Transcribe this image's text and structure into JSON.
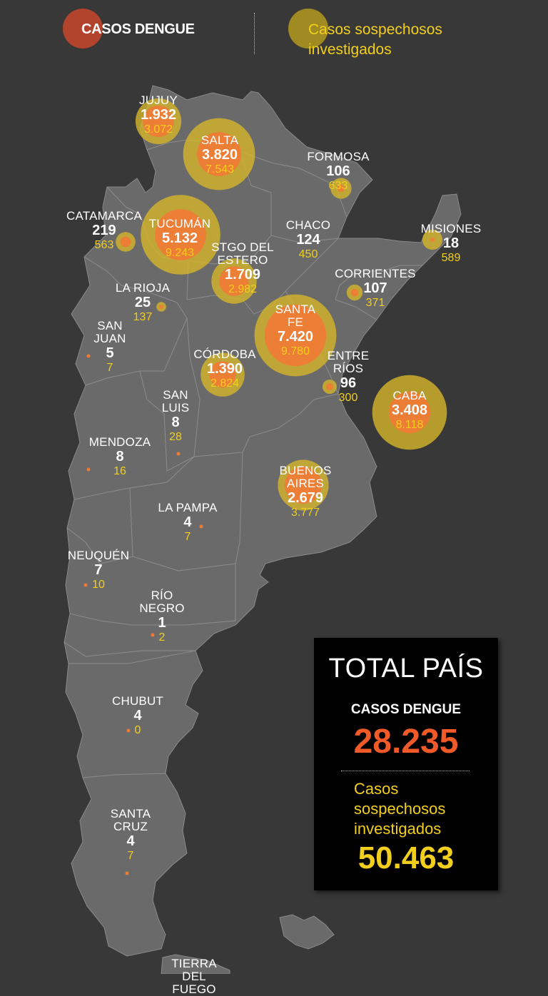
{
  "legend": {
    "dengue_label": "CASOS DENGUE",
    "suspect_label": "Casos sospechosos investigados"
  },
  "colors": {
    "background": "#383838",
    "land": "#6a6a6a",
    "border": "#888888",
    "dengue": "#f07b35",
    "suspect": "#d4b52b"
  },
  "provinces": [
    {
      "name": "JUJUY",
      "cases": "1.932",
      "suspect": "3.072"
    },
    {
      "name": "SALTA",
      "cases": "3.820",
      "suspect": "7.543"
    },
    {
      "name": "FORMOSA",
      "cases": "106",
      "suspect": "633"
    },
    {
      "name": "CATAMARCA",
      "cases": "219",
      "suspect": "563"
    },
    {
      "name": "TUCUMÁN",
      "cases": "5.132",
      "suspect": "9.243"
    },
    {
      "name": "CHACO",
      "cases": "124",
      "suspect": "450"
    },
    {
      "name": "MISIONES",
      "cases": "18",
      "suspect": "589"
    },
    {
      "name": "STGO DEL ESTERO",
      "cases": "1.709",
      "suspect": "2.982"
    },
    {
      "name": "CORRIENTES",
      "cases": "107",
      "suspect": "371"
    },
    {
      "name": "LA RIOJA",
      "cases": "25",
      "suspect": "137"
    },
    {
      "name": "SANTA FE",
      "cases": "7.420",
      "suspect": "9.780"
    },
    {
      "name": "SAN JUAN",
      "cases": "5",
      "suspect": "7"
    },
    {
      "name": "CÓRDOBA",
      "cases": "1.390",
      "suspect": "2.824"
    },
    {
      "name": "ENTRE RÍOS",
      "cases": "96",
      "suspect": "300"
    },
    {
      "name": "CABA",
      "cases": "3.408",
      "suspect": "8.118"
    },
    {
      "name": "SAN LUIS",
      "cases": "8",
      "suspect": "28"
    },
    {
      "name": "MENDOZA",
      "cases": "8",
      "suspect": "16"
    },
    {
      "name": "BUENOS AIRES",
      "cases": "2.679",
      "suspect": "3.777"
    },
    {
      "name": "LA PAMPA",
      "cases": "4",
      "suspect": "7"
    },
    {
      "name": "NEUQUÉN",
      "cases": "7",
      "suspect": "10"
    },
    {
      "name": "RÍO NEGRO",
      "cases": "1",
      "suspect": "2"
    },
    {
      "name": "CHUBUT",
      "cases": "4",
      "suspect": "0"
    },
    {
      "name": "SANTA CRUZ",
      "cases": "4",
      "suspect": "7"
    },
    {
      "name": "TIERRA DEL FUEGO",
      "cases": "",
      "suspect": ""
    }
  ],
  "total": {
    "title": "TOTAL PAÍS",
    "dengue_label": "CASOS DENGUE",
    "dengue_value": "28.235",
    "suspect_label": "Casos sospechosos investigados",
    "suspect_value": "50.463"
  }
}
